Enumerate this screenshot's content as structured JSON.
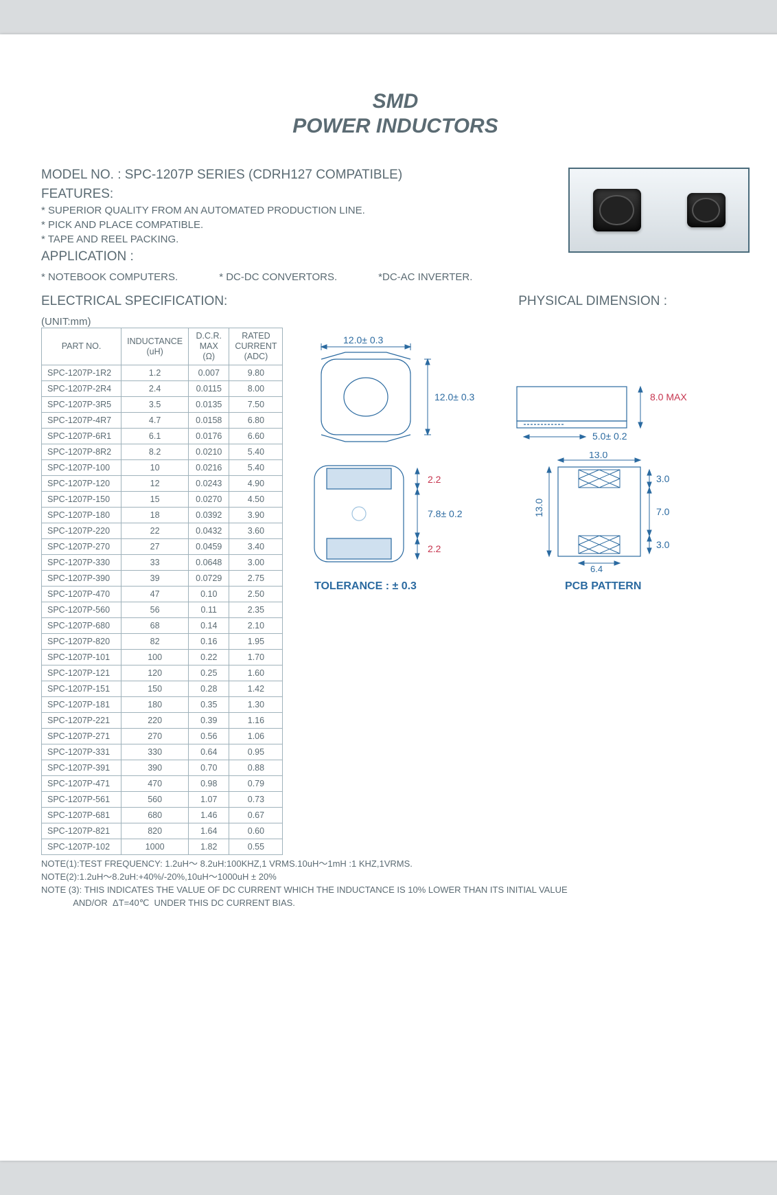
{
  "title_line1": "SMD",
  "title_line2": "POWER   INDUCTORS",
  "model_label": "MODEL NO.    : SPC-1207P SERIES (CDRH127 COMPATIBLE)",
  "features_heading": "FEATURES:",
  "features": [
    "* SUPERIOR QUALITY FROM AN AUTOMATED PRODUCTION LINE.",
    "* PICK AND PLACE COMPATIBLE.",
    "* TAPE AND REEL PACKING."
  ],
  "application_heading": "APPLICATION :",
  "applications": [
    "* NOTEBOOK COMPUTERS.",
    "* DC-DC CONVERTORS.",
    "*DC-AC INVERTER."
  ],
  "elec_spec_heading": "ELECTRICAL SPECIFICATION:",
  "phys_dim_heading": "PHYSICAL DIMENSION :",
  "unit_note": "(UNIT:mm)",
  "table": {
    "headers": {
      "part": "PART   NO.",
      "inductance": "INDUCTANCE\n(uH)",
      "dcr": "D.C.R.\nMAX\n(Ω)",
      "rated": "RATED\nCURRENT\n(ADC)"
    },
    "rows": [
      {
        "pn": "SPC-1207P-1R2",
        "l": "1.2",
        "dcr": "0.007",
        "i": "9.80"
      },
      {
        "pn": "SPC-1207P-2R4",
        "l": "2.4",
        "dcr": "0.0115",
        "i": "8.00"
      },
      {
        "pn": "SPC-1207P-3R5",
        "l": "3.5",
        "dcr": "0.0135",
        "i": "7.50"
      },
      {
        "pn": "SPC-1207P-4R7",
        "l": "4.7",
        "dcr": "0.0158",
        "i": "6.80"
      },
      {
        "pn": "SPC-1207P-6R1",
        "l": "6.1",
        "dcr": "0.0176",
        "i": "6.60"
      },
      {
        "pn": "SPC-1207P-8R2",
        "l": "8.2",
        "dcr": "0.0210",
        "i": "5.40"
      },
      {
        "pn": "SPC-1207P-100",
        "l": "10",
        "dcr": "0.0216",
        "i": "5.40"
      },
      {
        "pn": "SPC-1207P-120",
        "l": "12",
        "dcr": "0.0243",
        "i": "4.90"
      },
      {
        "pn": "SPC-1207P-150",
        "l": "15",
        "dcr": "0.0270",
        "i": "4.50"
      },
      {
        "pn": "SPC-1207P-180",
        "l": "18",
        "dcr": "0.0392",
        "i": "3.90"
      },
      {
        "pn": "SPC-1207P-220",
        "l": "22",
        "dcr": "0.0432",
        "i": "3.60"
      },
      {
        "pn": "SPC-1207P-270",
        "l": "27",
        "dcr": "0.0459",
        "i": "3.40"
      },
      {
        "pn": "SPC-1207P-330",
        "l": "33",
        "dcr": "0.0648",
        "i": "3.00"
      },
      {
        "pn": "SPC-1207P-390",
        "l": "39",
        "dcr": "0.0729",
        "i": "2.75"
      },
      {
        "pn": "SPC-1207P-470",
        "l": "47",
        "dcr": "0.10",
        "i": "2.50"
      },
      {
        "pn": "SPC-1207P-560",
        "l": "56",
        "dcr": "0.11",
        "i": "2.35"
      },
      {
        "pn": "SPC-1207P-680",
        "l": "68",
        "dcr": "0.14",
        "i": "2.10"
      },
      {
        "pn": "SPC-1207P-820",
        "l": "82",
        "dcr": "0.16",
        "i": "1.95"
      },
      {
        "pn": "SPC-1207P-101",
        "l": "100",
        "dcr": "0.22",
        "i": "1.70"
      },
      {
        "pn": "SPC-1207P-121",
        "l": "120",
        "dcr": "0.25",
        "i": "1.60"
      },
      {
        "pn": "SPC-1207P-151",
        "l": "150",
        "dcr": "0.28",
        "i": "1.42"
      },
      {
        "pn": "SPC-1207P-181",
        "l": "180",
        "dcr": "0.35",
        "i": "1.30"
      },
      {
        "pn": "SPC-1207P-221",
        "l": "220",
        "dcr": "0.39",
        "i": "1.16"
      },
      {
        "pn": "SPC-1207P-271",
        "l": "270",
        "dcr": "0.56",
        "i": "1.06"
      },
      {
        "pn": "SPC-1207P-331",
        "l": "330",
        "dcr": "0.64",
        "i": "0.95"
      },
      {
        "pn": "SPC-1207P-391",
        "l": "390",
        "dcr": "0.70",
        "i": "0.88"
      },
      {
        "pn": "SPC-1207P-471",
        "l": "470",
        "dcr": "0.98",
        "i": "0.79"
      },
      {
        "pn": "SPC-1207P-561",
        "l": "560",
        "dcr": "1.07",
        "i": "0.73"
      },
      {
        "pn": "SPC-1207P-681",
        "l": "680",
        "dcr": "1.46",
        "i": "0.67"
      },
      {
        "pn": "SPC-1207P-821",
        "l": "820",
        "dcr": "1.64",
        "i": "0.60"
      },
      {
        "pn": "SPC-1207P-102",
        "l": "1000",
        "dcr": "1.82",
        "i": "0.55"
      }
    ]
  },
  "dimensions": {
    "top_width": "12.0± 0.3",
    "top_height": "12.0± 0.3",
    "side_height": "8.0 MAX",
    "side_lead": "5.0± 0.2",
    "bottom_pad_h": "2.2",
    "bottom_h": "7.8± 0.2",
    "bottom_pad_h2": "2.2",
    "tolerance_label": "TOLERANCE :  ± 0.3",
    "pcb": {
      "width": "13.0",
      "height": "13.0",
      "pad_h1": "3.0",
      "gap": "7.0",
      "pad_h2": "3.0",
      "pad_w": "6.4",
      "label": "PCB PATTERN"
    },
    "colors": {
      "line": "#2b6aa0",
      "text": "#2b6aa0",
      "alt_text": "#c6344e"
    }
  },
  "notes": [
    "NOTE(1):TEST FREQUENCY: 1.2uH～ 8.2uH:100KHZ,1 VRMS.10uH～1mH :1 KHZ,1VRMS.",
    "NOTE(2):1.2uH～8.2uH:+40%/-20%,10uH～1000uH ± 20%",
    "NOTE (3): THIS INDICATES THE VALUE OF DC CURRENT WHICH THE INDUCTANCE IS 10% LOWER THAN ITS INITIAL VALUE",
    "             AND/OR  ΔT=40℃  UNDER THIS DC CURRENT BIAS."
  ]
}
